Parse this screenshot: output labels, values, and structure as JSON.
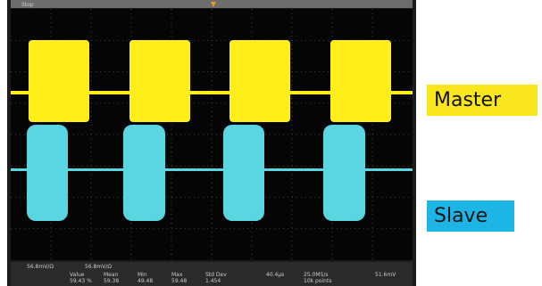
{
  "scope": {
    "status": "Stop",
    "channels": [
      "56.8mV/Ω",
      "56.8mV/Ω"
    ],
    "measurements": {
      "headers": [
        "Value",
        "Mean",
        "Min",
        "Max",
        "Std Dev"
      ],
      "row": [
        "59.43 %",
        "59.38",
        "49.48",
        "59.48",
        "1.454"
      ]
    },
    "timebase": "40.4µs",
    "sample_rate": "25.0MS/s",
    "record_length": "10k points",
    "trigger_level": "51.6mV"
  },
  "labels": {
    "master": "Master",
    "slave": "Slave"
  }
}
